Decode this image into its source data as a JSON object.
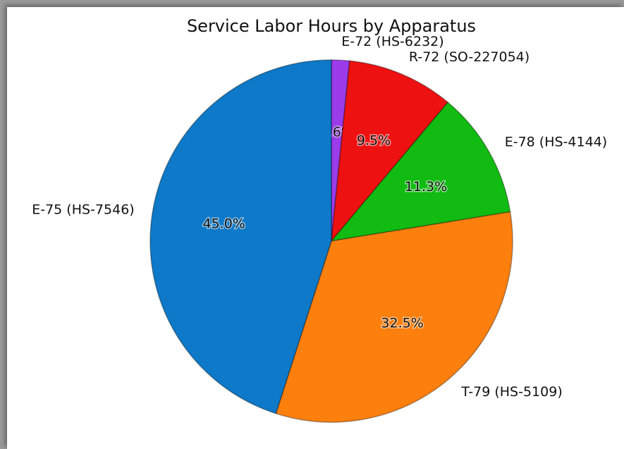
{
  "chart_data": {
    "type": "pie",
    "title": "Service Labor Hours by Apparatus",
    "categories": [
      "E-72 (HS-6232)",
      "R-72 (SO-227054)",
      "E-78 (HS-4144)",
      "T-79 (HS-5109)",
      "E-75 (HS-7546)"
    ],
    "values": [
      1.6,
      9.5,
      11.3,
      32.5,
      45.0
    ],
    "value_labels": [
      "1.6%",
      "9.5%",
      "11.3%",
      "32.5%",
      "45.0%"
    ],
    "colors": [
      "#9b3bea",
      "#ee1111",
      "#11bb11",
      "#fd7f0e",
      "#0d79c8"
    ]
  }
}
